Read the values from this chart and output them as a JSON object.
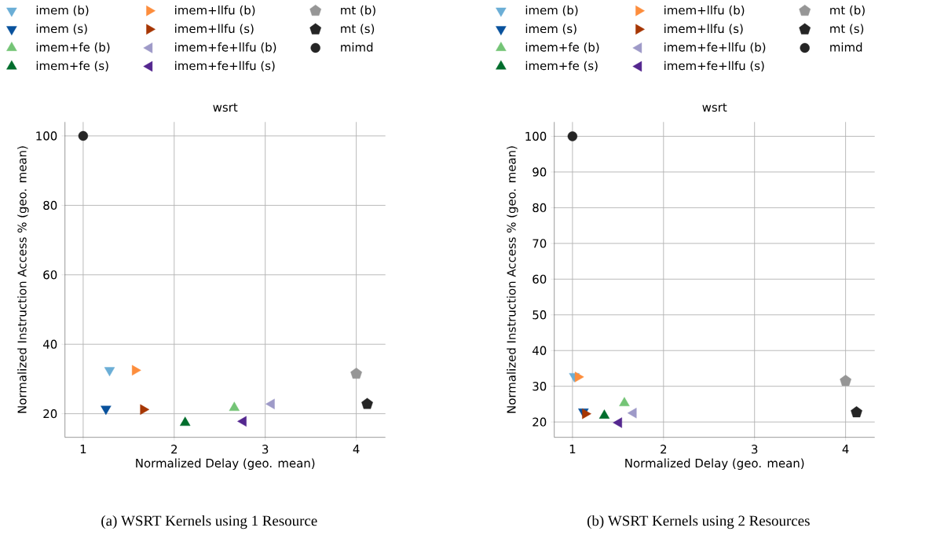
{
  "chart_data": [
    {
      "type": "scatter",
      "title": "wsrt",
      "xlabel": "Normalized Delay (geo. mean)",
      "ylabel": "Normalized Instruction Access % (geo. mean)",
      "annotations": [
        "(a) WSRT Kernels using 1 Resource"
      ],
      "xlim": [
        0.8,
        4.32
      ],
      "ylim": [
        13.2,
        104
      ],
      "xticks": [
        1,
        2,
        3,
        4
      ],
      "yticks": [
        20,
        40,
        60,
        80,
        100
      ],
      "grid": true,
      "legend": "top",
      "series": [
        {
          "name": "imem (b)",
          "color": "#6baed6",
          "marker": "triangle-down",
          "x": [
            1.29
          ],
          "values": [
            32.5
          ]
        },
        {
          "name": "imem (s)",
          "color": "#08519c",
          "marker": "triangle-down",
          "x": [
            1.25
          ],
          "values": [
            21.4
          ]
        },
        {
          "name": "imem+fe (b)",
          "color": "#74c476",
          "marker": "triangle",
          "x": [
            2.66
          ],
          "values": [
            21.7
          ]
        },
        {
          "name": "imem+fe (s)",
          "color": "#006d2c",
          "marker": "triangle",
          "x": [
            2.12
          ],
          "values": [
            17.4
          ]
        },
        {
          "name": "imem+llfu (b)",
          "color": "#fd8d3c",
          "marker": "triangle-right",
          "x": [
            1.57
          ],
          "values": [
            32.5
          ]
        },
        {
          "name": "imem+llfu (s)",
          "color": "#a63603",
          "marker": "triangle-right",
          "x": [
            1.66
          ],
          "values": [
            21.2
          ]
        },
        {
          "name": "imem+fe+llfu (b)",
          "color": "#9e9ac8",
          "marker": "triangle-left",
          "x": [
            3.07
          ],
          "values": [
            22.8
          ]
        },
        {
          "name": "imem+fe+llfu (s)",
          "color": "#54278f",
          "marker": "triangle-left",
          "x": [
            2.76
          ],
          "values": [
            17.8
          ]
        },
        {
          "name": "mt (b)",
          "color": "#969696",
          "x": [
            4.0
          ],
          "values": [
            31.5
          ]
        },
        {
          "name": "mt (s)",
          "color": "#252525",
          "x": [
            4.12
          ],
          "values": [
            22.8
          ]
        },
        {
          "name": "mimd",
          "color": "#252525",
          "marker": "circle",
          "x": [
            1.0
          ],
          "values": [
            100
          ]
        }
      ]
    },
    {
      "type": "scatter",
      "title": "wsrt",
      "xlabel": "Normalized Delay (geo. mean)",
      "ylabel": "Normalized Instruction Access % (geo. mean)",
      "annotations": [
        "(b) WSRT Kernels using 2 Resources"
      ],
      "xlim": [
        0.8,
        4.32
      ],
      "ylim": [
        15.7,
        104
      ],
      "xticks": [
        1,
        2,
        3,
        4
      ],
      "yticks": [
        20,
        30,
        40,
        50,
        60,
        70,
        80,
        90,
        100
      ],
      "grid": true,
      "legend": "top",
      "series": [
        {
          "name": "imem (b)",
          "color": "#6baed6",
          "marker": "triangle-down",
          "x": [
            1.02
          ],
          "values": [
            32.8
          ]
        },
        {
          "name": "imem (s)",
          "color": "#08519c",
          "marker": "triangle-down",
          "x": [
            1.12
          ],
          "values": [
            22.9
          ]
        },
        {
          "name": "imem+fe (b)",
          "color": "#74c476",
          "marker": "triangle",
          "x": [
            1.57
          ],
          "values": [
            25.3
          ]
        },
        {
          "name": "imem+fe (s)",
          "color": "#006d2c",
          "marker": "triangle",
          "x": [
            1.35
          ],
          "values": [
            21.8
          ]
        },
        {
          "name": "imem+llfu (b)",
          "color": "#fd8d3c",
          "marker": "triangle-right",
          "x": [
            1.06
          ],
          "values": [
            32.6
          ]
        },
        {
          "name": "imem+llfu (s)",
          "color": "#a63603",
          "marker": "triangle-right",
          "x": [
            1.14
          ],
          "values": [
            22.3
          ]
        },
        {
          "name": "imem+fe+llfu (b)",
          "color": "#9e9ac8",
          "marker": "triangle-left",
          "x": [
            1.67
          ],
          "values": [
            22.5
          ]
        },
        {
          "name": "imem+fe+llfu (s)",
          "color": "#54278f",
          "marker": "triangle-left",
          "x": [
            1.51
          ],
          "values": [
            19.8
          ]
        },
        {
          "name": "mt (b)",
          "color": "#969696",
          "x": [
            4.0
          ],
          "values": [
            31.5
          ]
        },
        {
          "name": "mt (s)",
          "color": "#252525",
          "x": [
            4.12
          ],
          "values": [
            22.7
          ]
        },
        {
          "name": "mimd",
          "color": "#252525",
          "marker": "circle",
          "x": [
            1.0
          ],
          "values": [
            100
          ]
        }
      ]
    }
  ]
}
